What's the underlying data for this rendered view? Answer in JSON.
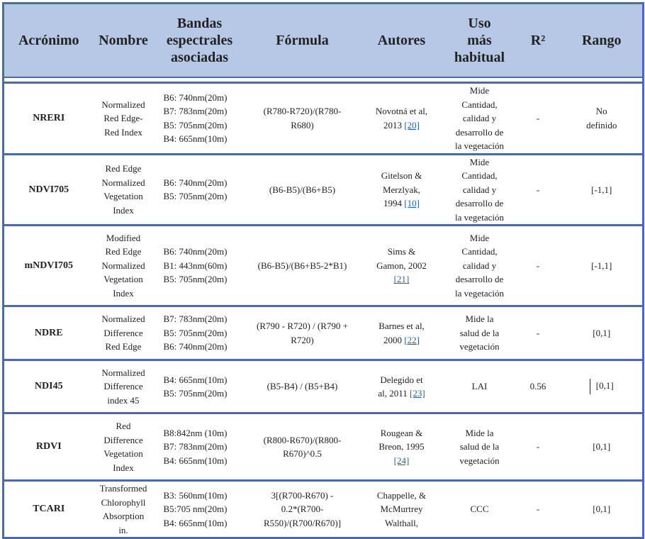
{
  "headers": [
    "Acrónimo",
    "Nombre",
    "Bandas\nespectrales\nasociadas",
    "Fórmula",
    "Autores",
    "Uso\nmás\nhabitual",
    "R²",
    "Rango"
  ],
  "rows": [
    {
      "acronym": "NRERI",
      "name": "Normalized\nRed Edge-\nRed Index",
      "bands": "B6: 740nm(20m)\nB7: 783nm(20m)\nB5: 705nm(20m)\nB4: 665nm(10m)",
      "formula": "(R780-R720)/(R780-\nR680)",
      "authors": "Novotná et al,\n2013 ",
      "ref": "[20]",
      "use": "Mide\nCantidad,\ncalidad y\ndesarrollo de\nla vegetación",
      "r2": "-",
      "range": "No\ndefinido"
    },
    {
      "acronym": "NDVI705",
      "name": "Red Edge\nNormalized\nVegetation\nIndex",
      "bands": "B6: 740nm(20m)\nB5: 705nm(20m)",
      "formula": "(B6-B5)/(B6+B5)",
      "authors": "Gitelson &\nMerzlyak,\n1994 ",
      "ref": "[10]",
      "use": "Mide\nCantidad,\ncalidad y\ndesarrollo de\nla vegetación",
      "r2": "-",
      "range": "[-1,1]"
    },
    {
      "acronym": "mNDVI705",
      "name": "Modified\nRed Edge\nNormalized\nVegetation\nIndex",
      "bands": "B6: 740nm(20m)\nB1: 443nm(60m)\nB5: 705nm(20m)",
      "formula": "(B6-B5)/(B6+B5-2*B1)",
      "authors": "Sims &\nGamon, 2002\n",
      "ref": "[21]",
      "use": "Mide\nCantidad,\ncalidad y\ndesarrollo de\nla vegetación",
      "r2": "-",
      "range": "[-1,1]"
    },
    {
      "acronym": "NDRE",
      "name": "Normalized\nDifference\nRed Edge",
      "bands": "B7: 783nm(20m)\nB5: 705nm(20m)\nB6: 740nm(20m)",
      "formula": "(R790 - R720) / (R790 +\nR720)",
      "authors": "Barnes et al,\n2000 ",
      "ref": "[22]",
      "use": "Mide la\nsalud de la\nvegetación",
      "r2": "-",
      "range": "[0,1]"
    },
    {
      "acronym": "NDI45",
      "name": "Normalized\nDifference\nindex 45",
      "bands": "B4: 665nm(10m)\nB5: 705nm(20m)",
      "formula": "(B5-B4) / (B5+B4)",
      "authors": "Delegido et\nal, 2011 ",
      "ref": "[23]",
      "use": "LAI",
      "r2": "0.56",
      "range": "[0,1]",
      "caret": true
    },
    {
      "acronym": "RDVI",
      "name": "Red\nDifference\nVegetation\nIndex",
      "bands": "B8:842nm (10m)\nB7: 783nm(20m)\nB4: 665nm(10m)",
      "formula": "(R800-R670)/(R800-\nR670)^0.5",
      "authors": "Rougean &\nBreon, 1995\n",
      "ref": "[24]",
      "use": "Mide la\nsalud de la\nvegetación",
      "r2": "-",
      "range": "[0,1]"
    },
    {
      "acronym": "TCARI",
      "name": "Transformed\nChlorophyll\nAbsorption\nin.",
      "bands": "B3: 560nm(10m)\nB5:705 nm(20m)\nB4: 665nm(10m)",
      "formula": "3[(R700-R670) -\n0.2*(R700-\nR550)/(R700/R670)]",
      "authors": "Chappelle, &\nMcMurtrey\nWalthall,",
      "ref": "",
      "use": "CCC",
      "r2": "-",
      "range": "[0,1]"
    }
  ],
  "colors": {
    "header_bg": "#b7c8e6",
    "border": "#4a6aa8",
    "link": "#1f5fae"
  }
}
